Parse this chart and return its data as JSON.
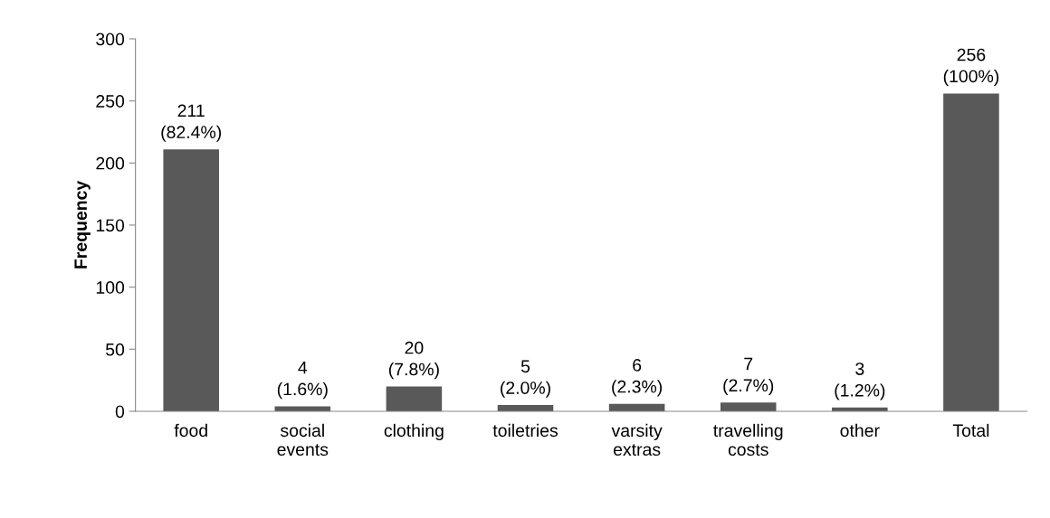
{
  "chart_data": {
    "type": "bar",
    "ylabel": "Frequency",
    "categories": [
      "food",
      "social\nevents",
      "clothing",
      "toiletries",
      "varsity\nextras",
      "travelling\ncosts",
      "other",
      "Total"
    ],
    "values": [
      211,
      4,
      20,
      5,
      6,
      7,
      3,
      256
    ],
    "value_labels": [
      "211\n(82.4%)",
      "4\n(1.6%)",
      "20\n(7.8%)",
      "5\n(2.0%)",
      "6\n(2.3%)",
      "7\n(2.7%)",
      "3\n(1.2%)",
      "256\n(100%)"
    ],
    "color": "#595959",
    "ylim": [
      0,
      300
    ],
    "yticks": [
      0,
      50,
      100,
      150,
      200,
      250,
      300
    ],
    "grid": false,
    "legend": false
  }
}
